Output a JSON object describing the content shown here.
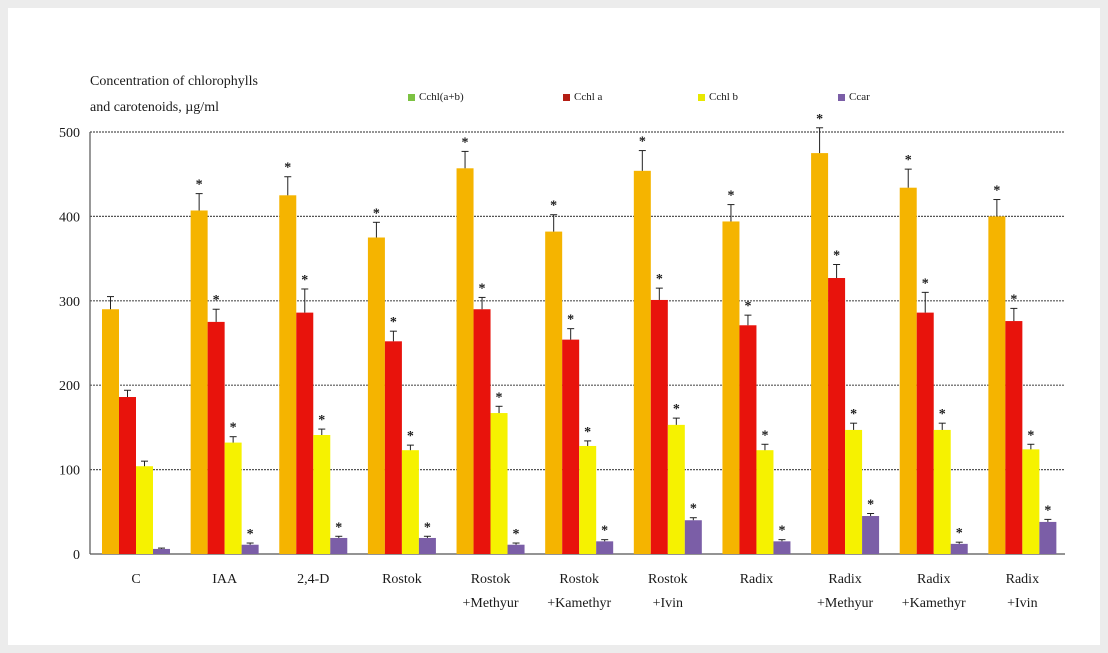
{
  "chart_data": {
    "type": "bar",
    "ylabel_lines": [
      "Concentration of chlorophylls",
      "and carotenoids, µg/ml"
    ],
    "ylim": [
      0,
      500
    ],
    "yticks": [
      0,
      100,
      200,
      300,
      400,
      500
    ],
    "grid": true,
    "legend_position": "top",
    "categories": [
      [
        "C"
      ],
      [
        "IAA"
      ],
      [
        "2,4-D"
      ],
      [
        "Rostok"
      ],
      [
        "Rostok",
        "+Methyur"
      ],
      [
        "Rostok",
        "+Kamethyr"
      ],
      [
        "Rostok",
        "+Ivin"
      ],
      [
        "Radix"
      ],
      [
        "Radix",
        "+Methyur"
      ],
      [
        "Radix",
        "+Kamethyr"
      ],
      [
        "Radix",
        "+Ivin"
      ]
    ],
    "series": [
      {
        "name": "Cchl(a+b)",
        "color": "#f5b400",
        "legend_color": "#7cc242",
        "values": [
          290,
          407,
          425,
          375,
          457,
          382,
          454,
          394,
          475,
          434,
          400
        ],
        "errors": [
          15,
          20,
          22,
          18,
          20,
          20,
          24,
          20,
          30,
          22,
          20
        ],
        "significant": [
          false,
          true,
          true,
          true,
          true,
          true,
          true,
          true,
          true,
          true,
          true
        ]
      },
      {
        "name": "Cchl a",
        "color": "#e8130c",
        "legend_color": "#b41e14",
        "values": [
          186,
          275,
          286,
          252,
          290,
          254,
          301,
          271,
          327,
          286,
          276
        ],
        "errors": [
          8,
          15,
          28,
          12,
          14,
          13,
          14,
          12,
          16,
          24,
          15
        ],
        "significant": [
          false,
          true,
          true,
          true,
          true,
          true,
          true,
          true,
          true,
          true,
          true
        ]
      },
      {
        "name": "Cchl b",
        "color": "#f6f200",
        "legend_color": "#e8e800",
        "values": [
          104,
          132,
          141,
          123,
          167,
          128,
          153,
          123,
          147,
          147,
          124
        ],
        "errors": [
          6,
          7,
          7,
          6,
          8,
          6,
          8,
          7,
          8,
          8,
          6
        ],
        "significant": [
          false,
          true,
          true,
          true,
          true,
          true,
          true,
          true,
          true,
          true,
          true
        ]
      },
      {
        "name": "Ccar",
        "color": "#7b5ea7",
        "legend_color": "#7b5ea7",
        "values": [
          6,
          11,
          19,
          19,
          11,
          15,
          40,
          15,
          45,
          12,
          38
        ],
        "errors": [
          1,
          2,
          2,
          2,
          2,
          2,
          3,
          2,
          3,
          2,
          3
        ],
        "significant": [
          false,
          true,
          true,
          true,
          true,
          true,
          true,
          true,
          true,
          true,
          true
        ]
      }
    ]
  }
}
